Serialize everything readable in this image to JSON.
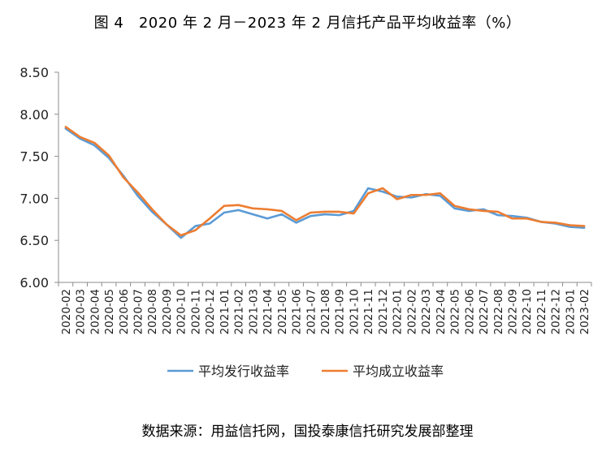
{
  "chart_data": {
    "type": "line",
    "title": "图 4　2020 年 2 月－2023 年 2 月信托产品平均收益率（%）",
    "source": "数据来源：用益信托网，国投泰康信托研究发展部整理",
    "xlabel": "",
    "ylabel": "",
    "ylim": [
      6.0,
      8.5
    ],
    "yticks": [
      "6.00",
      "6.50",
      "7.00",
      "7.50",
      "8.00",
      "8.50"
    ],
    "grid": false,
    "legend_position": "bottom",
    "categories": [
      "2020-02",
      "2020-03",
      "2020-04",
      "2020-05",
      "2020-06",
      "2020-07",
      "2020-08",
      "2020-09",
      "2020-10",
      "2020-11",
      "2020-12",
      "2021-01",
      "2021-02",
      "2021-03",
      "2021-04",
      "2021-05",
      "2021-06",
      "2021-07",
      "2021-08",
      "2021-09",
      "2021-10",
      "2021-11",
      "2021-12",
      "2022-01",
      "2022-02",
      "2022-03",
      "2022-04",
      "2022-05",
      "2022-06",
      "2022-07",
      "2022-08",
      "2022-09",
      "2022-10",
      "2022-11",
      "2022-12",
      "2023-01",
      "2023-02"
    ],
    "series": [
      {
        "name": "平均发行收益率",
        "color": "#5B9BD5",
        "values": [
          7.83,
          7.71,
          7.63,
          7.48,
          7.27,
          7.03,
          6.84,
          6.69,
          6.53,
          6.67,
          6.7,
          6.83,
          6.86,
          6.81,
          6.76,
          6.81,
          6.71,
          6.79,
          6.81,
          6.8,
          6.85,
          7.12,
          7.08,
          7.02,
          7.01,
          7.05,
          7.03,
          6.88,
          6.85,
          6.87,
          6.8,
          6.79,
          6.77,
          6.72,
          6.7,
          6.66,
          6.65
        ]
      },
      {
        "name": "平均成立收益率",
        "color": "#ED7D31",
        "values": [
          7.85,
          7.73,
          7.66,
          7.51,
          7.25,
          7.07,
          6.87,
          6.69,
          6.56,
          6.62,
          6.76,
          6.91,
          6.92,
          6.88,
          6.87,
          6.85,
          6.74,
          6.83,
          6.84,
          6.84,
          6.82,
          7.06,
          7.12,
          6.99,
          7.04,
          7.04,
          7.06,
          6.91,
          6.87,
          6.85,
          6.84,
          6.76,
          6.76,
          6.72,
          6.71,
          6.68,
          6.67
        ]
      }
    ]
  }
}
